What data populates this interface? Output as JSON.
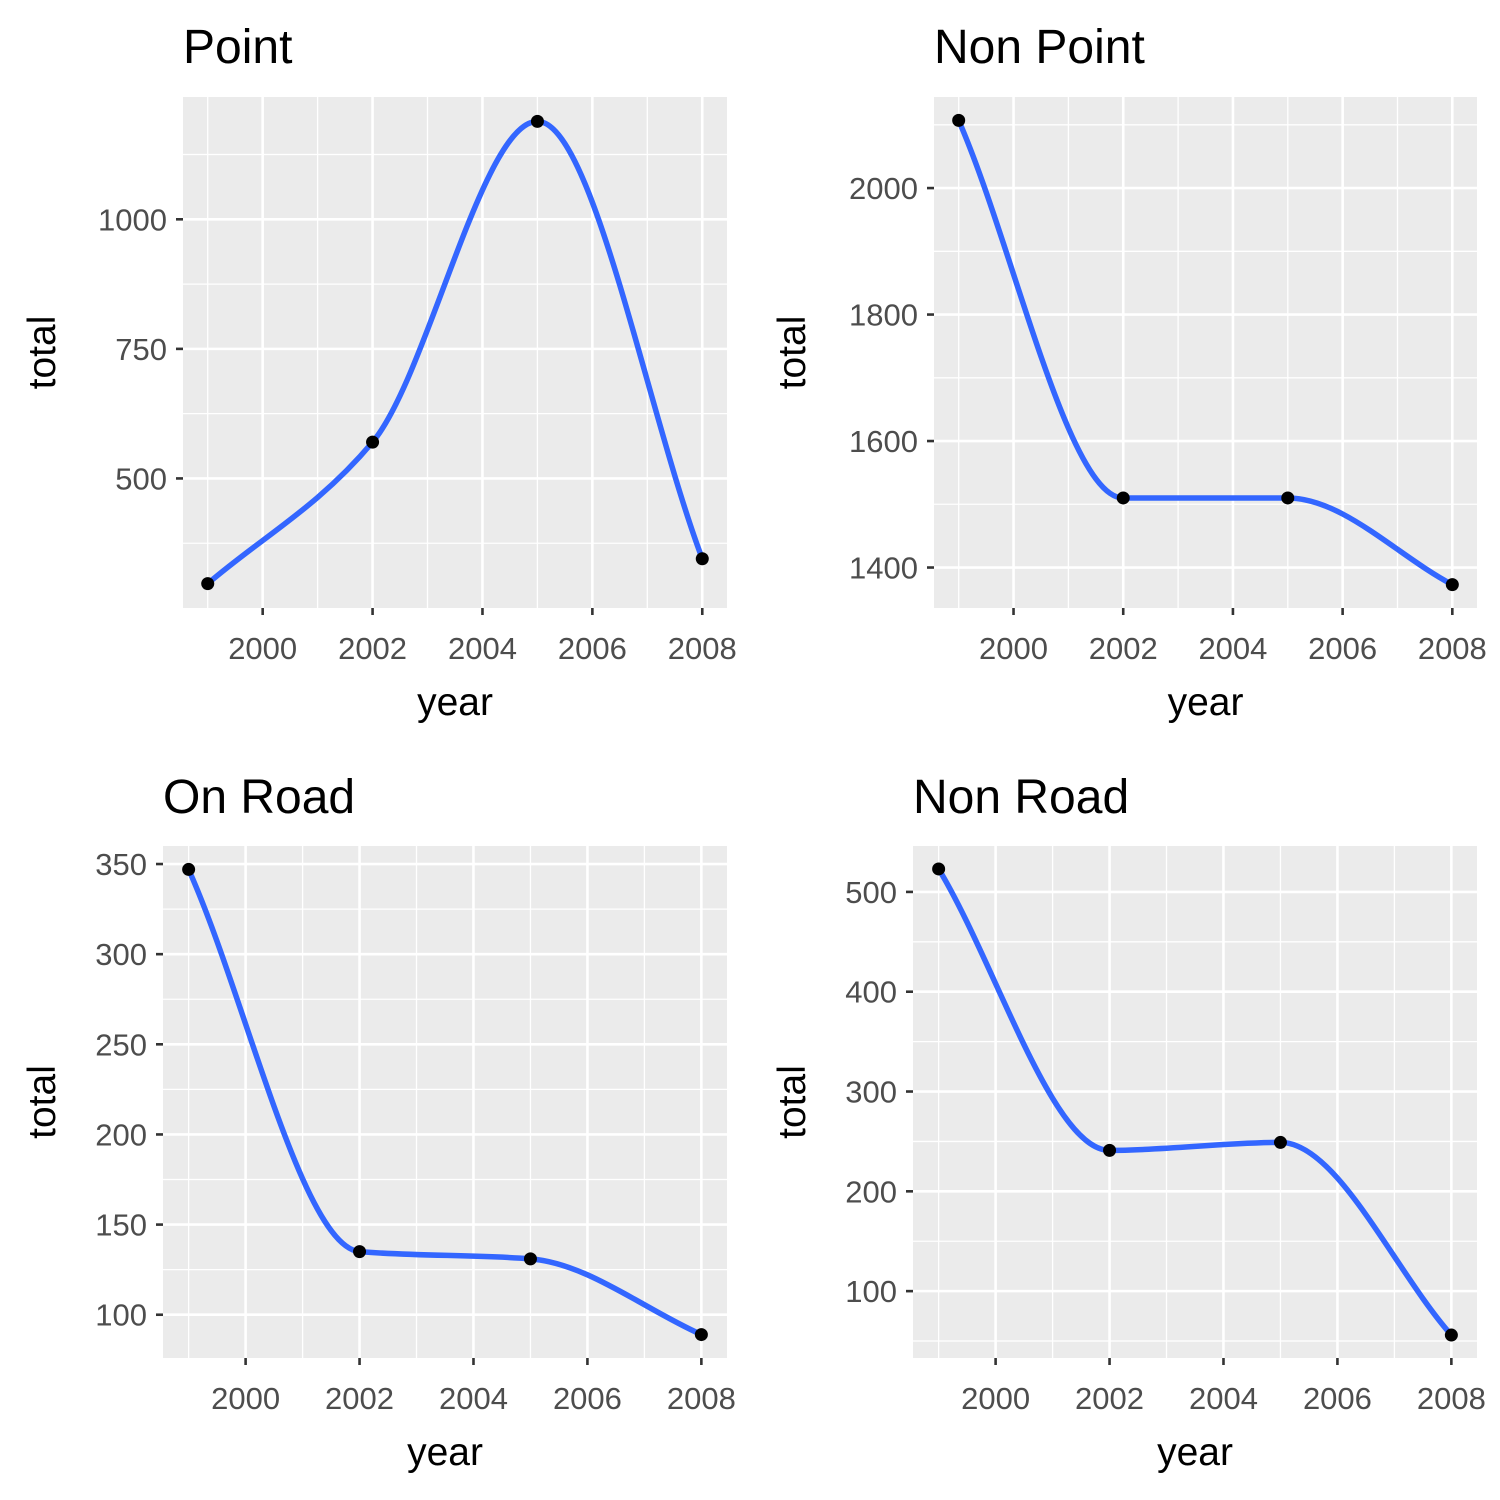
{
  "chart_data": [
    {
      "type": "line",
      "title": "Point",
      "xlabel": "year",
      "ylabel": "total",
      "x": [
        1999,
        2002,
        2005,
        2008
      ],
      "series": [
        {
          "values": [
            297,
            570,
            1189,
            345
          ]
        }
      ],
      "xlim": [
        1998.55,
        2008.45
      ],
      "ylim": [
        250,
        1236
      ],
      "x_ticks": [
        2000,
        2002,
        2004,
        2006,
        2008
      ],
      "y_ticks": [
        500,
        750,
        1000
      ],
      "grid": true,
      "line_color": "#3366FF",
      "point_color": "#000000"
    },
    {
      "type": "line",
      "title": "Non Point",
      "xlabel": "year",
      "ylabel": "total",
      "x": [
        1999,
        2002,
        2005,
        2008
      ],
      "series": [
        {
          "values": [
            2107,
            1510,
            1510,
            1373
          ]
        }
      ],
      "xlim": [
        1998.55,
        2008.45
      ],
      "ylim": [
        1336,
        2144
      ],
      "x_ticks": [
        2000,
        2002,
        2004,
        2006,
        2008
      ],
      "y_ticks": [
        1400,
        1600,
        1800,
        2000
      ],
      "grid": true,
      "line_color": "#3366FF",
      "point_color": "#000000"
    },
    {
      "type": "line",
      "title": "On Road",
      "xlabel": "year",
      "ylabel": "total",
      "x": [
        1999,
        2002,
        2005,
        2008
      ],
      "series": [
        {
          "values": [
            347,
            135,
            131,
            89
          ]
        }
      ],
      "xlim": [
        1998.55,
        2008.45
      ],
      "ylim": [
        76,
        360
      ],
      "x_ticks": [
        2000,
        2002,
        2004,
        2006,
        2008
      ],
      "y_ticks": [
        100,
        150,
        200,
        250,
        300,
        350
      ],
      "grid": true,
      "line_color": "#3366FF",
      "point_color": "#000000"
    },
    {
      "type": "line",
      "title": "Non Road",
      "xlabel": "year",
      "ylabel": "total",
      "x": [
        1999,
        2002,
        2005,
        2008
      ],
      "series": [
        {
          "values": [
            523,
            241,
            249,
            56
          ]
        }
      ],
      "xlim": [
        1998.55,
        2008.45
      ],
      "ylim": [
        33,
        546
      ],
      "x_ticks": [
        2000,
        2002,
        2004,
        2006,
        2008
      ],
      "y_ticks": [
        100,
        200,
        300,
        400,
        500
      ],
      "grid": true,
      "line_color": "#3366FF",
      "point_color": "#000000"
    }
  ]
}
